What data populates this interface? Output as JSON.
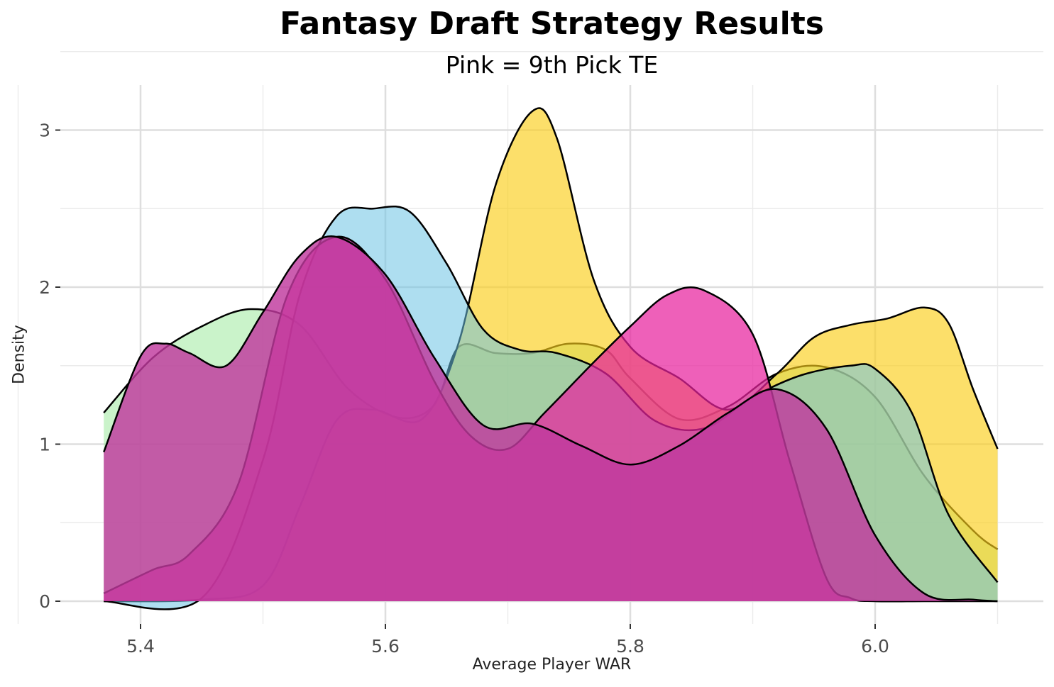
{
  "chart_data": {
    "type": "area",
    "title": "Fantasy Draft Strategy Results",
    "subtitle": "Pink = 9th Pick TE",
    "xlabel": "Average Player WAR",
    "ylabel": "Density",
    "xlim": [
      5.34,
      6.12
    ],
    "ylim": [
      0,
      3.3
    ],
    "x_ticks": [
      5.4,
      5.6,
      5.8,
      6.0
    ],
    "x_tick_labels": [
      "5.4",
      "5.6",
      "5.8",
      "6.0"
    ],
    "y_ticks": [
      0,
      1,
      2,
      3
    ],
    "y_tick_labels": [
      "0",
      "1",
      "2",
      "3"
    ],
    "grid": true,
    "legend": "none",
    "series": [
      {
        "color": "#96e896",
        "opacity": 0.5,
        "x": [
          5.37,
          5.41,
          5.45,
          5.49,
          5.53,
          5.57,
          5.61,
          5.64,
          5.66,
          5.69,
          5.72,
          5.75,
          5.78,
          5.8,
          5.84,
          5.88,
          5.92,
          5.96,
          6.0,
          6.04,
          6.08,
          6.1
        ],
        "y": [
          1.2,
          1.55,
          1.75,
          1.86,
          1.76,
          1.35,
          1.17,
          1.25,
          1.62,
          1.58,
          1.58,
          1.64,
          1.6,
          1.42,
          1.16,
          1.24,
          1.45,
          1.49,
          1.3,
          0.8,
          0.45,
          0.33
        ]
      },
      {
        "color": "#fbce1a",
        "opacity": 0.65,
        "x": [
          5.37,
          5.45,
          5.5,
          5.53,
          5.56,
          5.59,
          5.63,
          5.66,
          5.69,
          5.72,
          5.74,
          5.77,
          5.8,
          5.84,
          5.88,
          5.92,
          5.95,
          5.98,
          6.01,
          6.04,
          6.06,
          6.08,
          6.1
        ],
        "y": [
          0.0,
          0.01,
          0.1,
          0.6,
          1.15,
          1.22,
          1.16,
          1.65,
          2.65,
          3.12,
          2.95,
          2.05,
          1.62,
          1.42,
          1.22,
          1.45,
          1.68,
          1.76,
          1.8,
          1.87,
          1.77,
          1.35,
          0.97
        ]
      },
      {
        "color": "#6bc3e4",
        "opacity": 0.55,
        "x": [
          5.37,
          5.45,
          5.5,
          5.53,
          5.56,
          5.59,
          5.62,
          5.65,
          5.68,
          5.71,
          5.74,
          5.78,
          5.82,
          5.86,
          5.9,
          5.94,
          5.98,
          6.0,
          6.03,
          6.06,
          6.1
        ],
        "y": [
          0.0,
          0.02,
          0.9,
          1.95,
          2.45,
          2.5,
          2.48,
          2.15,
          1.73,
          1.6,
          1.58,
          1.45,
          1.15,
          1.1,
          1.3,
          1.44,
          1.5,
          1.48,
          1.2,
          0.55,
          0.12
        ]
      },
      {
        "color": "#e8239e",
        "opacity": 0.72,
        "x": [
          5.37,
          5.41,
          5.44,
          5.48,
          5.52,
          5.56,
          5.6,
          5.64,
          5.67,
          5.7,
          5.73,
          5.77,
          5.8,
          5.83,
          5.86,
          5.9,
          5.93,
          5.96,
          5.98,
          6.0,
          6.04,
          6.08,
          6.1
        ],
        "y": [
          0.05,
          0.2,
          0.3,
          0.75,
          1.95,
          2.32,
          2.05,
          1.4,
          1.05,
          0.97,
          1.2,
          1.52,
          1.75,
          1.95,
          1.98,
          1.7,
          0.9,
          0.15,
          0.02,
          0.0,
          0.0,
          0.0,
          0.0
        ]
      },
      {
        "color": "#c0399e",
        "opacity": 0.82,
        "x": [
          5.37,
          5.4,
          5.42,
          5.44,
          5.47,
          5.5,
          5.53,
          5.56,
          5.6,
          5.64,
          5.68,
          5.72,
          5.76,
          5.8,
          5.84,
          5.88,
          5.92,
          5.96,
          6.0,
          6.04,
          6.08,
          6.1
        ],
        "y": [
          0.95,
          1.56,
          1.64,
          1.58,
          1.5,
          1.84,
          2.2,
          2.32,
          2.08,
          1.55,
          1.12,
          1.13,
          0.99,
          0.87,
          0.99,
          1.2,
          1.35,
          1.1,
          0.42,
          0.05,
          0.01,
          0.0
        ]
      }
    ]
  }
}
